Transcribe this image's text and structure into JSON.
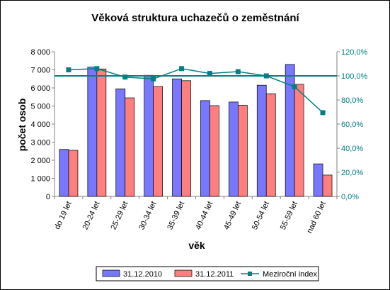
{
  "chart_data": {
    "type": "bar",
    "title": "Věková struktura uchazečů o zeměstnání",
    "xlabel": "věk",
    "ylabel": "počet osob",
    "categories": [
      "do 19 let",
      "20-24 let",
      "25-29 let",
      "30-34 let",
      "35-39 let",
      "40-44 let",
      "45-49 let",
      "50-54 let",
      "55-59 let",
      "nad 60 let"
    ],
    "series": [
      {
        "name": "31.12.2010",
        "axis": "left",
        "kind": "bar",
        "color": "#7777ff",
        "values": [
          2600,
          7150,
          5950,
          6700,
          6500,
          5300,
          5220,
          6150,
          7300,
          1800
        ]
      },
      {
        "name": "31.12.2011",
        "axis": "left",
        "kind": "bar",
        "color": "#ff7f7f",
        "values": [
          2550,
          7050,
          5450,
          6080,
          6400,
          5020,
          5040,
          5680,
          6200,
          1180
        ]
      },
      {
        "name": "Meziroční index",
        "axis": "right",
        "kind": "line",
        "color": "#008080",
        "values": [
          105.0,
          106.0,
          99.0,
          97.5,
          106.0,
          102.0,
          103.5,
          100.0,
          91.0,
          69.5
        ]
      }
    ],
    "ylim": [
      0,
      8000
    ],
    "yticks": [
      "0",
      "1 000",
      "2 000",
      "3 000",
      "4 000",
      "5 000",
      "6 000",
      "7 000",
      "8 000"
    ],
    "ylim_right": [
      0,
      120
    ],
    "yticks_right": [
      "0,0%",
      "20,0%",
      "40,0%",
      "60,0%",
      "80,0%",
      "100,0%",
      "120,0%"
    ],
    "reference_line": {
      "axis": "right",
      "value": 100,
      "color": "#008080"
    },
    "grid": false,
    "legend_position": "bottom",
    "colors": {
      "axis": "#808080",
      "right_axis_text": "#008080"
    }
  }
}
